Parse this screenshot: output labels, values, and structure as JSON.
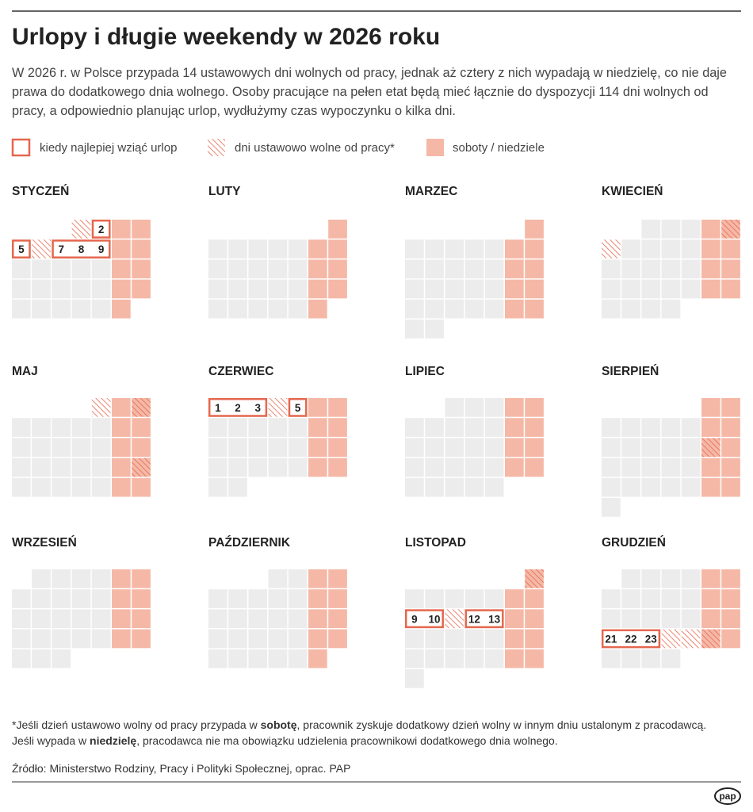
{
  "title": "Urlopy i długie weekendy w 2026 roku",
  "intro": "W 2026 r. w Polsce przypada 14 ustawowych dni wolnych od pracy, jednak aż cztery z nich wypadają w niedzielę, co nie daje prawa do dodatkowego dnia wolnego. Osoby pracujące na pełen etat będą mieć łącznie do dyspozycji 114 dni wolnych od pracy, a odpowiednio planując urlop, wydłużymy czas wypoczynku o kilka dni.",
  "legend": {
    "leave": "kiedy najlepiej wziąć urlop",
    "holiday": "dni ustawowo wolne od pracy*",
    "weekend": "soboty / niedziele"
  },
  "months": [
    {
      "name": "STYCZEŃ",
      "holidays": [
        1,
        6
      ],
      "leave": [
        [
          2
        ],
        [
          5
        ],
        [
          7,
          8,
          9
        ]
      ]
    },
    {
      "name": "LUTY",
      "holidays": [],
      "leave": []
    },
    {
      "name": "MARZEC",
      "holidays": [],
      "leave": []
    },
    {
      "name": "KWIECIEŃ",
      "holidays": [
        5,
        6
      ],
      "leave": []
    },
    {
      "name": "MAJ",
      "holidays": [
        1,
        3,
        24
      ],
      "leave": []
    },
    {
      "name": "CZERWIEC",
      "holidays": [
        4
      ],
      "leave": [
        [
          1,
          2,
          3
        ],
        [
          5
        ]
      ]
    },
    {
      "name": "LIPIEC",
      "holidays": [],
      "leave": []
    },
    {
      "name": "SIERPIEŃ",
      "holidays": [
        15
      ],
      "leave": []
    },
    {
      "name": "WRZESIEŃ",
      "holidays": [],
      "leave": []
    },
    {
      "name": "PAŹDZIERNIK",
      "holidays": [],
      "leave": []
    },
    {
      "name": "LISTOPAD",
      "holidays": [
        1,
        11
      ],
      "leave": [
        [
          9,
          10
        ],
        [
          12,
          13
        ]
      ]
    },
    {
      "name": "GRUDZIEŃ",
      "holidays": [
        24,
        25,
        26
      ],
      "leave": [
        [
          21,
          22,
          23
        ]
      ]
    }
  ],
  "footnote": [
    "*Jeśli dzień ustawowo wolny od pracy przypada w ",
    "sobotę",
    ", pracownik zyskuje dodatkowy dzień wolny w innym dniu ustalonym z pracodawcą. Jeśli wypada w ",
    "niedzielę",
    ", pracodawca nie ma obowiązku udzielenia pracownikowi dodatkowego dnia wolnego."
  ],
  "source": "Źródło: Ministerstwo Rodziny, Pracy i Polityki Społecznej, oprac. PAP",
  "logo": "pap"
}
